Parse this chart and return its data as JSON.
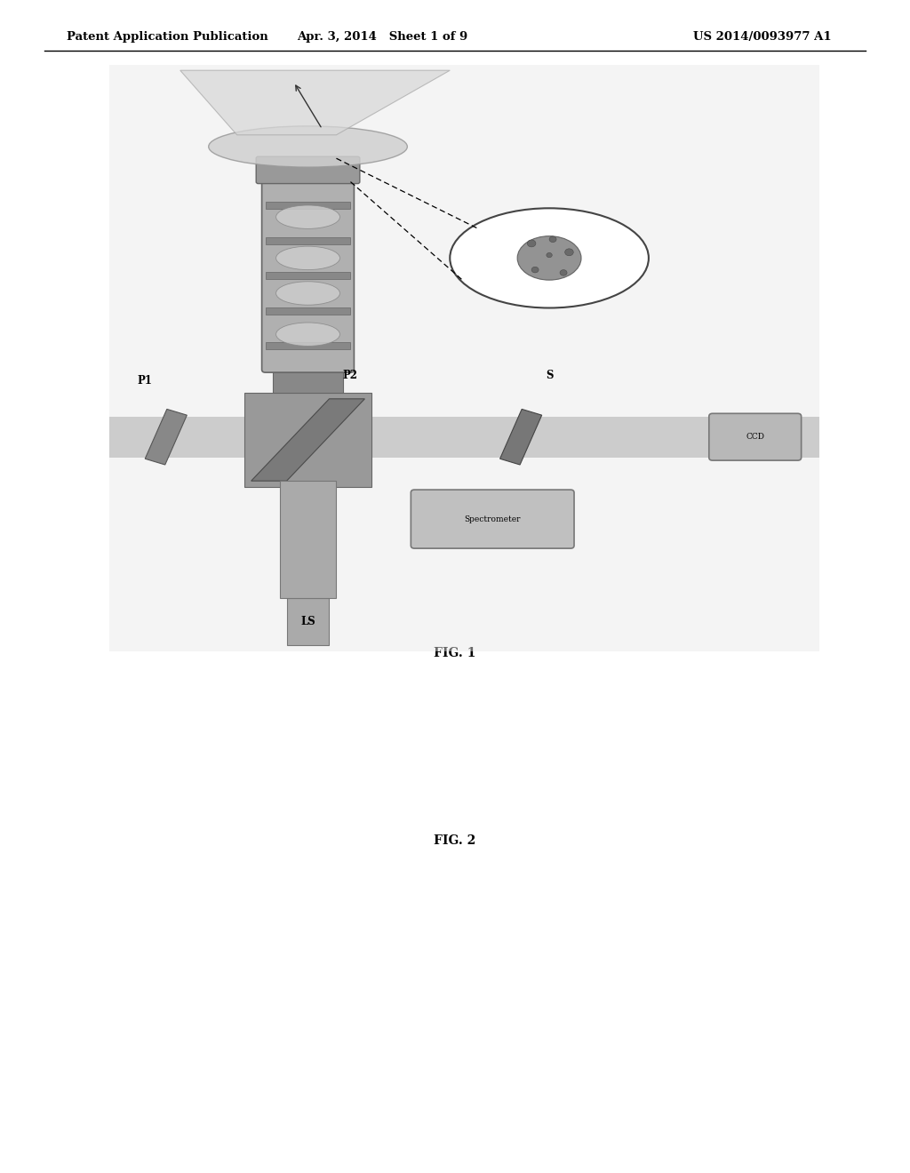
{
  "background_color": "#ffffff",
  "header_left": "Patent Application Publication",
  "header_mid": "Apr. 3, 2014   Sheet 1 of 9",
  "header_right": "US 2014/0093977 A1",
  "fig1_caption": "FIG. 1",
  "fig2_caption": "FIG. 2"
}
